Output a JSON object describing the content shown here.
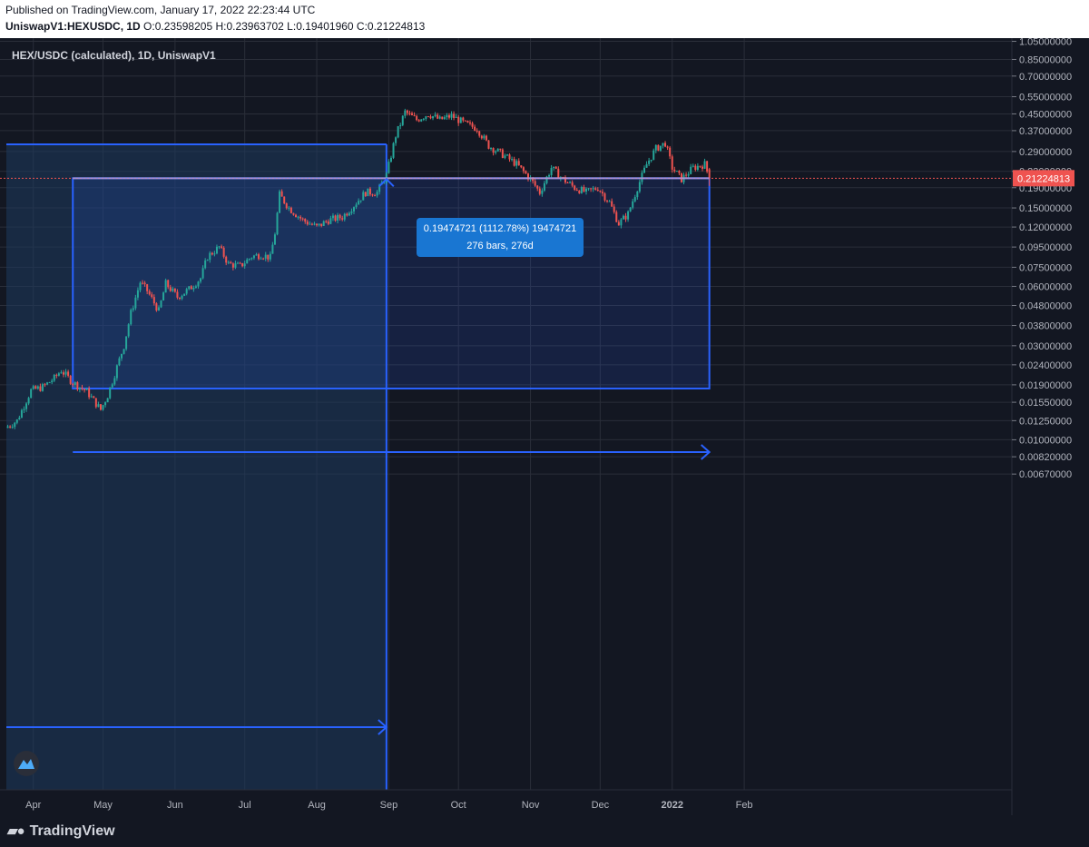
{
  "header": {
    "published": "Published on TradingView.com, January 17, 2022 22:23:44 UTC",
    "symbol": "UniswapV1:HEXUSDC, 1D",
    "ohlc": "O:0.23598205 H:0.23963702 L:0.19401960 C:0.21224813"
  },
  "chart_data": {
    "type": "candlestick",
    "title": "HEX/USDC (calculated), 1D, UniswapV1",
    "x_ticks": [
      "Apr",
      "May",
      "Jun",
      "Jul",
      "Aug",
      "Sep",
      "Oct",
      "Nov",
      "Dec",
      "2022",
      "Feb"
    ],
    "y_scale": "log",
    "y_ticks": [
      "1.05000000",
      "0.85000000",
      "0.70000000",
      "0.55000000",
      "0.45000000",
      "0.37000000",
      "0.29000000",
      "0.23000000",
      "0.19000000",
      "0.15000000",
      "0.12000000",
      "0.09500000",
      "0.07500000",
      "0.06000000",
      "0.04800000",
      "0.03800000",
      "0.03000000",
      "0.02400000",
      "0.01900000",
      "0.01550000",
      "0.01250000",
      "0.01000000",
      "0.00820000",
      "0.00670000"
    ],
    "last_price": "0.21224813",
    "ohlc_last": {
      "open": 0.23598205,
      "high": 0.23963702,
      "low": 0.1940196,
      "close": 0.21224813
    },
    "price_path": [
      [
        "2021-03-20",
        0.0115
      ],
      [
        "2021-03-25",
        0.0125
      ],
      [
        "2021-03-31",
        0.0178
      ],
      [
        "2021-04-05",
        0.0185
      ],
      [
        "2021-04-10",
        0.0205
      ],
      [
        "2021-04-13",
        0.0225
      ],
      [
        "2021-04-18",
        0.0195
      ],
      [
        "2021-04-24",
        0.0176
      ],
      [
        "2021-04-30",
        0.0142
      ],
      [
        "2021-05-03",
        0.0168
      ],
      [
        "2021-05-06",
        0.0215
      ],
      [
        "2021-05-10",
        0.03
      ],
      [
        "2021-05-13",
        0.044
      ],
      [
        "2021-05-17",
        0.063
      ],
      [
        "2021-05-20",
        0.057
      ],
      [
        "2021-05-25",
        0.045
      ],
      [
        "2021-05-28",
        0.062
      ],
      [
        "2021-06-02",
        0.053
      ],
      [
        "2021-06-07",
        0.058
      ],
      [
        "2021-06-12",
        0.066
      ],
      [
        "2021-06-15",
        0.085
      ],
      [
        "2021-06-20",
        0.095
      ],
      [
        "2021-06-24",
        0.078
      ],
      [
        "2021-06-29",
        0.076
      ],
      [
        "2021-07-04",
        0.085
      ],
      [
        "2021-07-08",
        0.087
      ],
      [
        "2021-07-12",
        0.084
      ],
      [
        "2021-07-14",
        0.112
      ],
      [
        "2021-07-16",
        0.175
      ],
      [
        "2021-07-20",
        0.15
      ],
      [
        "2021-07-26",
        0.13
      ],
      [
        "2021-08-01",
        0.12
      ],
      [
        "2021-08-06",
        0.13
      ],
      [
        "2021-08-12",
        0.135
      ],
      [
        "2021-08-17",
        0.155
      ],
      [
        "2021-08-22",
        0.18
      ],
      [
        "2021-08-27",
        0.18
      ],
      [
        "2021-08-31",
        0.22
      ],
      [
        "2021-09-04",
        0.35
      ],
      [
        "2021-09-08",
        0.46
      ],
      [
        "2021-09-13",
        0.42
      ],
      [
        "2021-09-18",
        0.45
      ],
      [
        "2021-09-23",
        0.42
      ],
      [
        "2021-09-28",
        0.44
      ],
      [
        "2021-10-04",
        0.4
      ],
      [
        "2021-10-09",
        0.38
      ],
      [
        "2021-10-14",
        0.31
      ],
      [
        "2021-10-20",
        0.28
      ],
      [
        "2021-10-26",
        0.25
      ],
      [
        "2021-11-01",
        0.21
      ],
      [
        "2021-11-05",
        0.18
      ],
      [
        "2021-11-10",
        0.24
      ],
      [
        "2021-11-15",
        0.21
      ],
      [
        "2021-11-20",
        0.19
      ],
      [
        "2021-11-25",
        0.18
      ],
      [
        "2021-11-30",
        0.19
      ],
      [
        "2021-12-05",
        0.16
      ],
      [
        "2021-12-09",
        0.125
      ],
      [
        "2021-12-13",
        0.14
      ],
      [
        "2021-12-17",
        0.19
      ],
      [
        "2021-12-21",
        0.25
      ],
      [
        "2021-12-25",
        0.3
      ],
      [
        "2021-12-29",
        0.32
      ],
      [
        "2022-01-01",
        0.24
      ],
      [
        "2022-01-05",
        0.21
      ],
      [
        "2022-01-10",
        0.24
      ],
      [
        "2022-01-15",
        0.25
      ],
      [
        "2022-01-17",
        0.2122
      ]
    ],
    "drawings": {
      "date_range_1": {
        "start": "2021-03-20",
        "end": "2021-08-31"
      },
      "date_range_2": {
        "start": "2021-04-18",
        "end": "2022-01-17",
        "low": 0.0182,
        "high": 0.2122
      },
      "measure_label": {
        "line1": "0.19474721 (1112.78%) 19474721",
        "line2": "276 bars, 276d"
      }
    }
  },
  "colors": {
    "background": "#131722",
    "grid": "#2a2e39",
    "up": "#26a69a",
    "down": "#ef5350",
    "range_stroke": "#2962ff",
    "range_fill": "#1e3a5f",
    "label_bg": "#1976d2",
    "price_label": "#ef5350"
  },
  "brand": {
    "name": "TradingView",
    "icon": "tradingview-logo-icon"
  }
}
